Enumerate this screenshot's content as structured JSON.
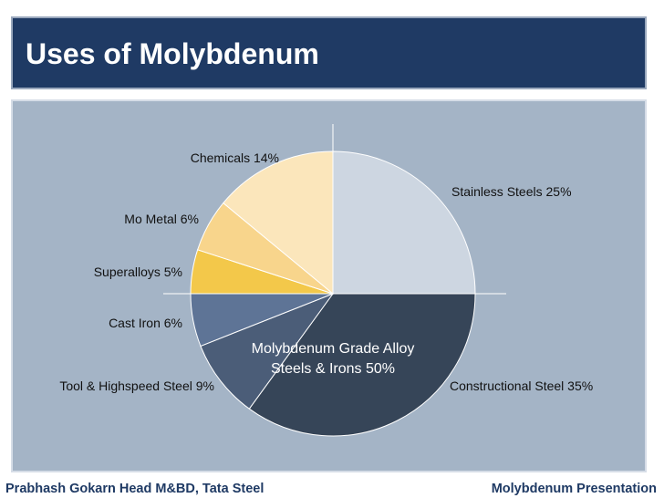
{
  "title": "Uses of Molybdenum",
  "footer": {
    "left": "Prabhash Gokarn Head M&BD, Tata Steel",
    "right": "Molybdenum Presentation"
  },
  "colors": {
    "title_bg": "#1f3a64",
    "panel_bg": "#a4b4c6",
    "footer_text": "#1f3a64"
  },
  "chart_data": {
    "type": "pie",
    "title": "",
    "center_label": [
      "Molybdenum Grade Alloy",
      "Steels & Irons 50%"
    ],
    "slices": [
      {
        "label": "Stainless Steels 25%",
        "value": 25,
        "color": "#cdd6e1"
      },
      {
        "label": "Constructional Steel 35%",
        "value": 35,
        "color": "#364558"
      },
      {
        "label": "Tool & Highspeed Steel 9%",
        "value": 9,
        "color": "#4b5d78"
      },
      {
        "label": "Cast Iron 6%",
        "value": 6,
        "color": "#5e7496"
      },
      {
        "label": "Superalloys 5%",
        "value": 5,
        "color": "#f3c84a"
      },
      {
        "label": "Mo Metal 6%",
        "value": 6,
        "color": "#f8d58c"
      },
      {
        "label": "Chemicals 14%",
        "value": 14,
        "color": "#fbe6bb"
      }
    ]
  }
}
